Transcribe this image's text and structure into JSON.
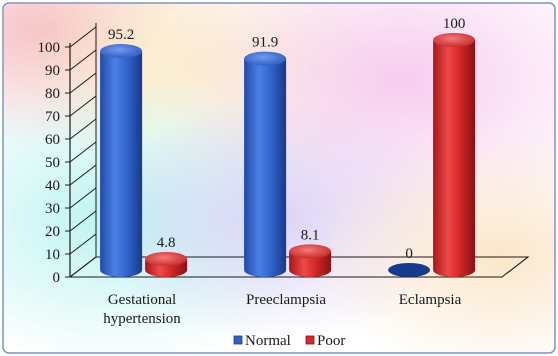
{
  "chart_data": {
    "type": "bar",
    "title": "",
    "xlabel": "",
    "ylabel": "",
    "categories": [
      [
        "Gestational",
        "hypertension"
      ],
      [
        "Preeclampsia"
      ],
      [
        "Eclampsia"
      ]
    ],
    "series": [
      {
        "name": "Normal",
        "values": [
          95.2,
          91.9,
          0
        ],
        "labels": [
          "95.2",
          "91.9",
          "0"
        ]
      },
      {
        "name": "Poor",
        "values": [
          4.8,
          8.1,
          100
        ],
        "labels": [
          "4.8",
          "8.1",
          "100"
        ]
      }
    ],
    "ylim": [
      0,
      100
    ],
    "yticks": [
      0,
      10,
      20,
      30,
      40,
      50,
      60,
      70,
      80,
      90,
      100
    ],
    "grid": false,
    "legend_position": "bottom",
    "style": "3d-cylinder",
    "colors": {
      "Normal": "#2f62c8",
      "Poor": "#d9282a",
      "background_tint": "pastel-rainbow",
      "frame": "#6f8ec0"
    }
  }
}
